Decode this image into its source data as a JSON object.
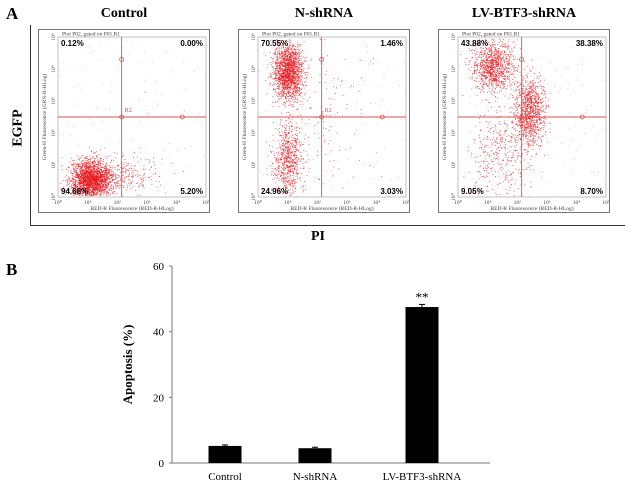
{
  "panel_a": {
    "letter": "A",
    "y_label": "EGFP",
    "x_label": "PI",
    "plot_header": "Plot P02, gated on P01.R1",
    "gate_label": "R2",
    "plot_x_axis_label": "RED-R Fluorescence (RED-R-HLog)",
    "plot_y_axis_label": "Green-H Fluorescence (GRN-B-HLog)",
    "tick_labels": [
      "10⁰",
      "10¹",
      "10²",
      "10³",
      "10⁴",
      "10⁵"
    ],
    "marker_color": "#e8141b",
    "gate_color": "#d9534f"
  },
  "chart_data": [
    {
      "type": "scatter",
      "title": "Control",
      "axis_scale": "log",
      "xlim": [
        1,
        100000
      ],
      "ylim": [
        1,
        100000
      ],
      "quadrants": {
        "upper_left": "0.12%",
        "upper_right": "0.00%",
        "lower_left": "94.68%",
        "lower_right": "5.20%"
      },
      "populations": [
        {
          "x_log": 1.1,
          "y_log": 0.55,
          "spread": [
            0.35,
            0.3
          ],
          "share": 0.9
        },
        {
          "x_log": 2.3,
          "y_log": 0.7,
          "spread": [
            0.6,
            0.3
          ],
          "share": 0.1
        }
      ]
    },
    {
      "type": "scatter",
      "title": "N-shRNA",
      "axis_scale": "log",
      "xlim": [
        1,
        100000
      ],
      "ylim": [
        1,
        100000
      ],
      "quadrants": {
        "upper_left": "70.55%",
        "upper_right": "1.46%",
        "lower_left": "24.96%",
        "lower_right": "3.03%"
      },
      "populations": [
        {
          "x_log": 1.0,
          "y_log": 3.9,
          "spread": [
            0.25,
            0.45
          ],
          "share": 0.68
        },
        {
          "x_log": 1.0,
          "y_log": 1.2,
          "spread": [
            0.25,
            0.55
          ],
          "share": 0.27
        },
        {
          "x_log": 2.2,
          "y_log": 2.5,
          "spread": [
            0.8,
            1.2
          ],
          "share": 0.05
        }
      ]
    },
    {
      "type": "scatter",
      "title": "LV-BTF3-shRNA",
      "axis_scale": "log",
      "xlim": [
        1,
        100000
      ],
      "ylim": [
        1,
        100000
      ],
      "quadrants": {
        "upper_left": "43.88%",
        "upper_right": "38.38%",
        "lower_left": "9.05%",
        "lower_right": "8.70%"
      },
      "populations": [
        {
          "x_log": 1.2,
          "y_log": 4.1,
          "spread": [
            0.35,
            0.4
          ],
          "share": 0.42
        },
        {
          "x_log": 2.4,
          "y_log": 2.7,
          "spread": [
            0.25,
            0.55
          ],
          "share": 0.42
        },
        {
          "x_log": 1.4,
          "y_log": 1.3,
          "spread": [
            0.5,
            0.7
          ],
          "share": 0.16
        }
      ]
    },
    {
      "type": "bar",
      "panel_letter": "B",
      "categories": [
        "Control",
        "N-shRNA",
        "LV-BTF3-shRNA"
      ],
      "values": [
        5.2,
        4.5,
        47.5
      ],
      "errors": [
        0.3,
        0.3,
        0.8
      ],
      "annotations": [
        "",
        "",
        "**"
      ],
      "ylabel": "Apoptosis (%)",
      "xlabel": "",
      "ylim": [
        0,
        60
      ],
      "yticks": [
        "0",
        "20",
        "40",
        "60"
      ],
      "bar_color": "#000000"
    }
  ]
}
